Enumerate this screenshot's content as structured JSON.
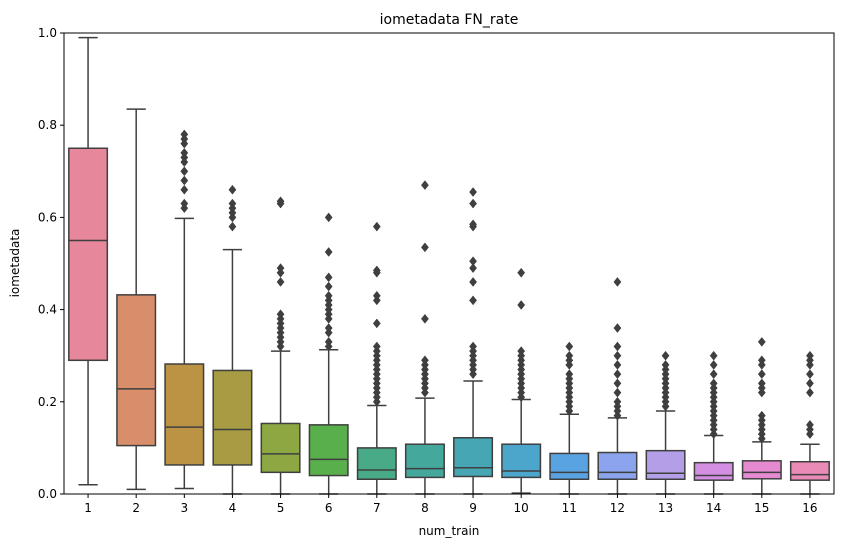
{
  "chart_data": {
    "type": "box",
    "title": "iometadata FN_rate",
    "xlabel": "num_train",
    "ylabel": "iometadata",
    "ylim": [
      0,
      1
    ],
    "yticks": [
      0.0,
      0.2,
      0.4,
      0.6,
      0.8,
      1.0
    ],
    "ytick_labels": [
      "0.0",
      "0.2",
      "0.4",
      "0.6",
      "0.8",
      "1.0"
    ],
    "categories": [
      "1",
      "2",
      "3",
      "4",
      "5",
      "6",
      "7",
      "8",
      "9",
      "10",
      "11",
      "12",
      "13",
      "14",
      "15",
      "16"
    ],
    "boxes": [
      {
        "whislo": 0.02,
        "q1": 0.29,
        "med": 0.55,
        "q3": 0.75,
        "whishi": 0.99,
        "color": "#e7879b",
        "fliers": []
      },
      {
        "whislo": 0.01,
        "q1": 0.105,
        "med": 0.228,
        "q3": 0.432,
        "whishi": 0.835,
        "color": "#d98e6b",
        "fliers": []
      },
      {
        "whislo": 0.012,
        "q1": 0.063,
        "med": 0.145,
        "q3": 0.282,
        "whishi": 0.598,
        "color": "#bc9244",
        "fliers": [
          0.62,
          0.63,
          0.66,
          0.68,
          0.7,
          0.72,
          0.73,
          0.74,
          0.76,
          0.77,
          0.78
        ]
      },
      {
        "whislo": 0.0,
        "q1": 0.063,
        "med": 0.14,
        "q3": 0.268,
        "whishi": 0.53,
        "color": "#a79c43",
        "fliers": [
          0.58,
          0.6,
          0.61,
          0.62,
          0.63,
          0.66
        ]
      },
      {
        "whislo": 0.0,
        "q1": 0.047,
        "med": 0.087,
        "q3": 0.153,
        "whishi": 0.31,
        "color": "#8da843",
        "fliers": [
          0.32,
          0.33,
          0.34,
          0.35,
          0.36,
          0.37,
          0.38,
          0.39,
          0.46,
          0.48,
          0.49,
          0.63,
          0.635
        ]
      },
      {
        "whislo": 0.0,
        "q1": 0.04,
        "med": 0.075,
        "q3": 0.15,
        "whishi": 0.313,
        "color": "#59af4b",
        "fliers": [
          0.32,
          0.33,
          0.35,
          0.36,
          0.38,
          0.39,
          0.4,
          0.41,
          0.42,
          0.43,
          0.45,
          0.47,
          0.525,
          0.6
        ]
      },
      {
        "whislo": 0.0,
        "q1": 0.032,
        "med": 0.052,
        "q3": 0.1,
        "whishi": 0.192,
        "color": "#48aa87",
        "fliers": [
          0.2,
          0.21,
          0.22,
          0.23,
          0.24,
          0.25,
          0.26,
          0.27,
          0.28,
          0.29,
          0.3,
          0.31,
          0.32,
          0.37,
          0.42,
          0.43,
          0.48,
          0.485,
          0.58
        ]
      },
      {
        "whislo": 0.0,
        "q1": 0.036,
        "med": 0.055,
        "q3": 0.108,
        "whishi": 0.208,
        "color": "#45a89d",
        "fliers": [
          0.22,
          0.23,
          0.24,
          0.25,
          0.26,
          0.27,
          0.28,
          0.29,
          0.38,
          0.535,
          0.67
        ]
      },
      {
        "whislo": 0.0,
        "q1": 0.038,
        "med": 0.057,
        "q3": 0.122,
        "whishi": 0.245,
        "color": "#47a6b3",
        "fliers": [
          0.26,
          0.27,
          0.28,
          0.29,
          0.3,
          0.31,
          0.32,
          0.42,
          0.46,
          0.49,
          0.505,
          0.58,
          0.585,
          0.63,
          0.655
        ]
      },
      {
        "whislo": 0.002,
        "q1": 0.036,
        "med": 0.05,
        "q3": 0.108,
        "whishi": 0.205,
        "color": "#4ca6cb",
        "fliers": [
          0.21,
          0.22,
          0.23,
          0.24,
          0.25,
          0.26,
          0.27,
          0.28,
          0.29,
          0.3,
          0.31,
          0.41,
          0.48
        ]
      },
      {
        "whislo": 0.0,
        "q1": 0.032,
        "med": 0.047,
        "q3": 0.088,
        "whishi": 0.173,
        "color": "#5aa3e3",
        "fliers": [
          0.18,
          0.19,
          0.2,
          0.21,
          0.22,
          0.23,
          0.24,
          0.25,
          0.26,
          0.28,
          0.29,
          0.3,
          0.32
        ]
      },
      {
        "whislo": 0.0,
        "q1": 0.032,
        "med": 0.047,
        "q3": 0.09,
        "whishi": 0.165,
        "color": "#8ba4ed",
        "fliers": [
          0.17,
          0.18,
          0.19,
          0.2,
          0.22,
          0.24,
          0.26,
          0.28,
          0.3,
          0.32,
          0.36,
          0.46
        ]
      },
      {
        "whislo": 0.0,
        "q1": 0.032,
        "med": 0.045,
        "q3": 0.094,
        "whishi": 0.18,
        "color": "#b39ee8",
        "fliers": [
          0.19,
          0.2,
          0.21,
          0.22,
          0.23,
          0.24,
          0.25,
          0.26,
          0.27,
          0.28,
          0.3
        ]
      },
      {
        "whislo": 0.0,
        "q1": 0.03,
        "med": 0.04,
        "q3": 0.068,
        "whishi": 0.127,
        "color": "#d48fe3",
        "fliers": [
          0.13,
          0.14,
          0.15,
          0.16,
          0.17,
          0.18,
          0.19,
          0.2,
          0.21,
          0.22,
          0.23,
          0.24,
          0.26,
          0.28,
          0.3
        ]
      },
      {
        "whislo": 0.0,
        "q1": 0.033,
        "med": 0.047,
        "q3": 0.072,
        "whishi": 0.113,
        "color": "#e58ad0",
        "fliers": [
          0.12,
          0.13,
          0.14,
          0.15,
          0.16,
          0.17,
          0.22,
          0.23,
          0.24,
          0.26,
          0.28,
          0.29,
          0.33
        ]
      },
      {
        "whislo": 0.0,
        "q1": 0.03,
        "med": 0.042,
        "q3": 0.07,
        "whishi": 0.108,
        "color": "#ea8ab7",
        "fliers": [
          0.13,
          0.14,
          0.15,
          0.22,
          0.24,
          0.26,
          0.28,
          0.29,
          0.3
        ]
      }
    ]
  }
}
